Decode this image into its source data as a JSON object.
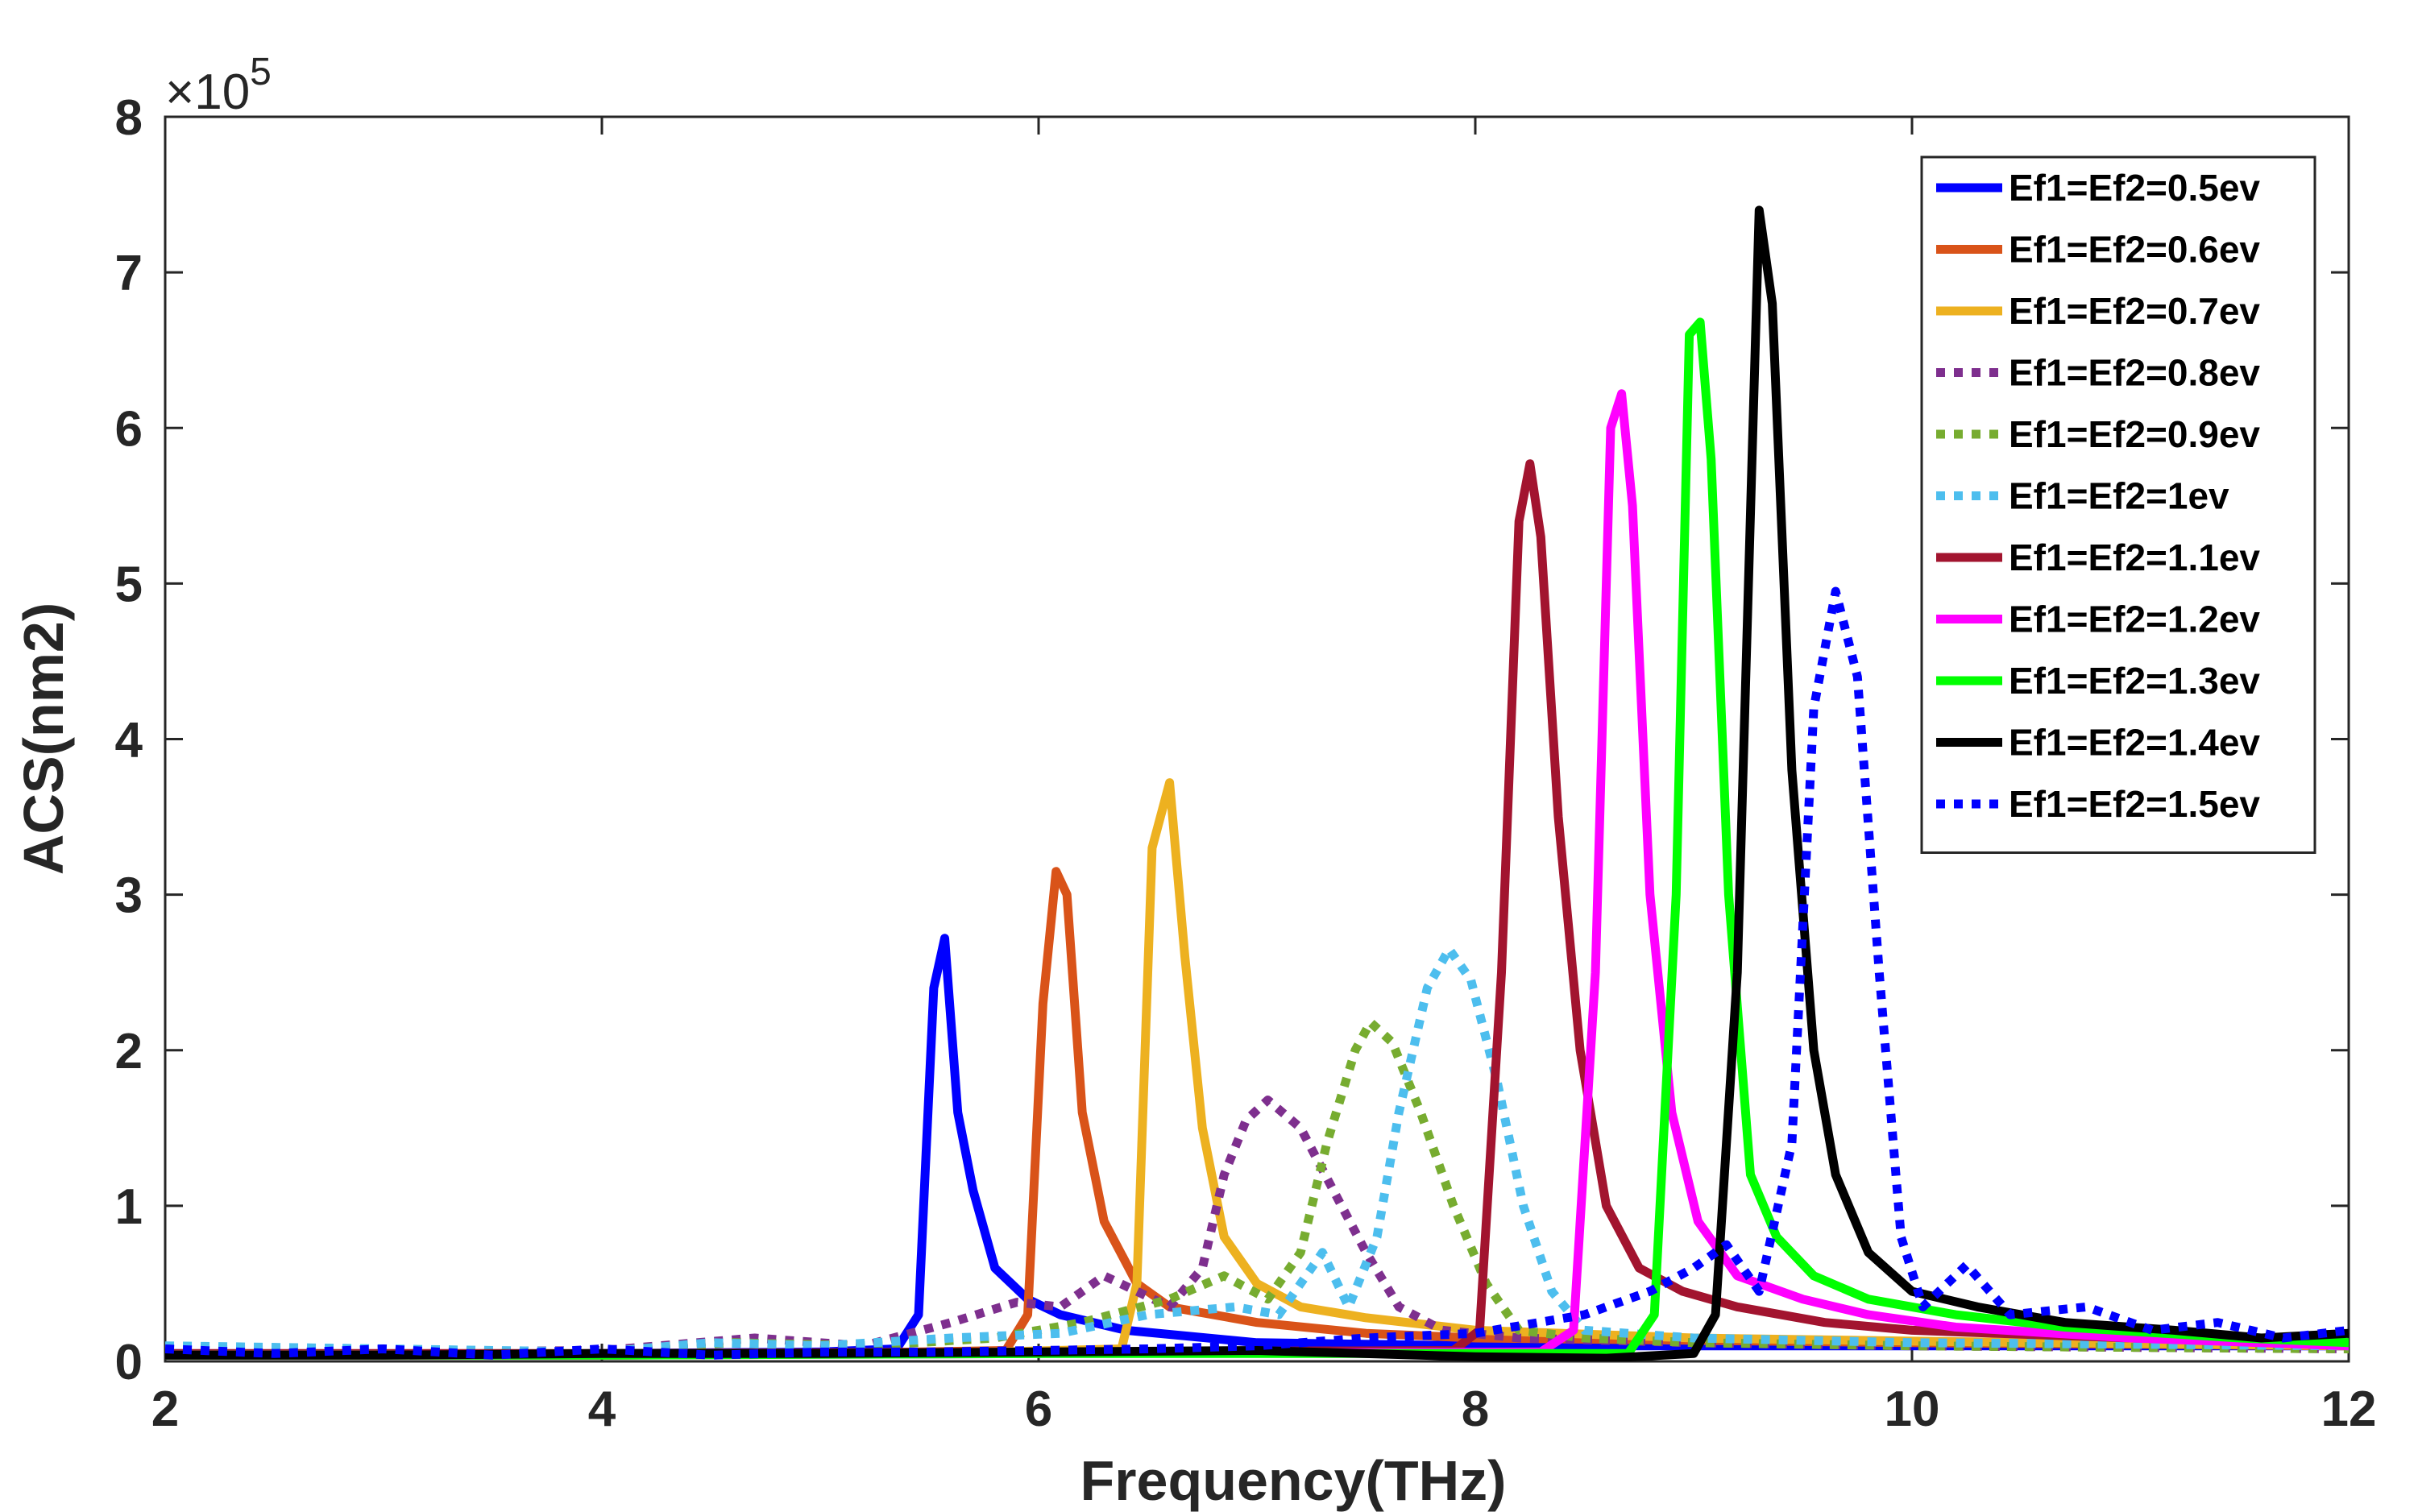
{
  "chart_data": {
    "type": "line",
    "title": "",
    "xlabel": "Frequency(THz)",
    "ylabel": "ACS(nm2)",
    "xlim": [
      2,
      12
    ],
    "ylim": [
      0,
      8
    ],
    "y_multiplier": "×10",
    "y_multiplier_exp": "5",
    "xticks": [
      2,
      4,
      6,
      8,
      10,
      12
    ],
    "yticks": [
      0,
      1,
      2,
      3,
      4,
      5,
      6,
      7,
      8
    ],
    "grid": false,
    "legend_position": "top-right",
    "series": [
      {
        "name": "Ef1=Ef2=0.5ev",
        "color": "#0000FF",
        "style": "solid",
        "points": [
          [
            2,
            0.05
          ],
          [
            3,
            0.04
          ],
          [
            4,
            0.05
          ],
          [
            5,
            0.06
          ],
          [
            5.35,
            0.08
          ],
          [
            5.45,
            0.3
          ],
          [
            5.52,
            2.4
          ],
          [
            5.57,
            2.72
          ],
          [
            5.63,
            1.6
          ],
          [
            5.7,
            1.1
          ],
          [
            5.8,
            0.6
          ],
          [
            5.95,
            0.4
          ],
          [
            6.1,
            0.3
          ],
          [
            6.4,
            0.2
          ],
          [
            7,
            0.12
          ],
          [
            8,
            0.1
          ],
          [
            10,
            0.1
          ],
          [
            12,
            0.1
          ]
        ]
      },
      {
        "name": "Ef1=Ef2=0.6ev",
        "color": "#D95319",
        "style": "solid",
        "points": [
          [
            2,
            0.04
          ],
          [
            4,
            0.04
          ],
          [
            5,
            0.05
          ],
          [
            5.85,
            0.07
          ],
          [
            5.95,
            0.3
          ],
          [
            6.02,
            2.3
          ],
          [
            6.08,
            3.15
          ],
          [
            6.13,
            3.0
          ],
          [
            6.2,
            1.6
          ],
          [
            6.3,
            0.9
          ],
          [
            6.45,
            0.5
          ],
          [
            6.6,
            0.35
          ],
          [
            7,
            0.25
          ],
          [
            7.5,
            0.18
          ],
          [
            8,
            0.15
          ],
          [
            10,
            0.12
          ],
          [
            12,
            0.1
          ]
        ]
      },
      {
        "name": "Ef1=Ef2=0.7ev",
        "color": "#EDB120",
        "style": "solid",
        "points": [
          [
            2,
            0.04
          ],
          [
            4,
            0.04
          ],
          [
            5.5,
            0.05
          ],
          [
            6.38,
            0.08
          ],
          [
            6.45,
            0.5
          ],
          [
            6.52,
            3.3
          ],
          [
            6.6,
            3.72
          ],
          [
            6.67,
            2.6
          ],
          [
            6.75,
            1.5
          ],
          [
            6.85,
            0.8
          ],
          [
            7,
            0.5
          ],
          [
            7.2,
            0.35
          ],
          [
            7.5,
            0.28
          ],
          [
            8,
            0.2
          ],
          [
            9,
            0.15
          ],
          [
            10,
            0.13
          ],
          [
            12,
            0.1
          ]
        ]
      },
      {
        "name": "Ef1=Ef2=0.8ev",
        "color": "#7E2F8E",
        "style": "dotted",
        "points": [
          [
            2,
            0.08
          ],
          [
            3,
            0.06
          ],
          [
            4,
            0.07
          ],
          [
            4.7,
            0.15
          ],
          [
            5.2,
            0.1
          ],
          [
            5.6,
            0.25
          ],
          [
            5.9,
            0.38
          ],
          [
            6.1,
            0.35
          ],
          [
            6.3,
            0.55
          ],
          [
            6.45,
            0.45
          ],
          [
            6.6,
            0.35
          ],
          [
            6.75,
            0.6
          ],
          [
            6.85,
            1.2
          ],
          [
            6.95,
            1.55
          ],
          [
            7.05,
            1.68
          ],
          [
            7.2,
            1.5
          ],
          [
            7.35,
            1.1
          ],
          [
            7.5,
            0.7
          ],
          [
            7.65,
            0.35
          ],
          [
            7.85,
            0.2
          ],
          [
            8.2,
            0.15
          ],
          [
            9,
            0.12
          ],
          [
            10,
            0.1
          ],
          [
            12,
            0.08
          ]
        ]
      },
      {
        "name": "Ef1=Ef2=0.9ev",
        "color": "#77AC30",
        "style": "dotted",
        "points": [
          [
            2,
            0.06
          ],
          [
            3,
            0.05
          ],
          [
            4,
            0.06
          ],
          [
            4.6,
            0.12
          ],
          [
            5.2,
            0.1
          ],
          [
            5.8,
            0.15
          ],
          [
            6.2,
            0.25
          ],
          [
            6.6,
            0.4
          ],
          [
            6.85,
            0.55
          ],
          [
            7.05,
            0.4
          ],
          [
            7.2,
            0.7
          ],
          [
            7.32,
            1.4
          ],
          [
            7.45,
            2.0
          ],
          [
            7.52,
            2.18
          ],
          [
            7.62,
            2.05
          ],
          [
            7.75,
            1.6
          ],
          [
            7.9,
            1.0
          ],
          [
            8.05,
            0.5
          ],
          [
            8.2,
            0.2
          ],
          [
            8.5,
            0.15
          ],
          [
            9,
            0.12
          ],
          [
            10,
            0.1
          ],
          [
            12,
            0.08
          ]
        ]
      },
      {
        "name": "Ef1=Ef2=1ev",
        "color": "#4DBEEE",
        "style": "dotted",
        "points": [
          [
            2,
            0.1
          ],
          [
            3,
            0.08
          ],
          [
            4,
            0.06
          ],
          [
            4.5,
            0.12
          ],
          [
            5,
            0.1
          ],
          [
            5.6,
            0.15
          ],
          [
            6.1,
            0.18
          ],
          [
            6.5,
            0.3
          ],
          [
            6.9,
            0.35
          ],
          [
            7.1,
            0.3
          ],
          [
            7.3,
            0.7
          ],
          [
            7.42,
            0.35
          ],
          [
            7.55,
            0.8
          ],
          [
            7.65,
            1.6
          ],
          [
            7.78,
            2.4
          ],
          [
            7.88,
            2.65
          ],
          [
            7.98,
            2.45
          ],
          [
            8.1,
            1.8
          ],
          [
            8.22,
            1.0
          ],
          [
            8.35,
            0.45
          ],
          [
            8.5,
            0.2
          ],
          [
            9,
            0.15
          ],
          [
            10,
            0.12
          ],
          [
            12,
            0.1
          ]
        ]
      },
      {
        "name": "Ef1=Ef2=1.1ev",
        "color": "#A2142F",
        "style": "solid",
        "points": [
          [
            2,
            0.05
          ],
          [
            4,
            0.05
          ],
          [
            6,
            0.06
          ],
          [
            7.9,
            0.07
          ],
          [
            8.02,
            0.2
          ],
          [
            8.12,
            2.5
          ],
          [
            8.2,
            5.4
          ],
          [
            8.25,
            5.77
          ],
          [
            8.3,
            5.3
          ],
          [
            8.38,
            3.5
          ],
          [
            8.48,
            2.0
          ],
          [
            8.6,
            1.0
          ],
          [
            8.75,
            0.6
          ],
          [
            8.95,
            0.45
          ],
          [
            9.2,
            0.35
          ],
          [
            9.6,
            0.25
          ],
          [
            10,
            0.2
          ],
          [
            11,
            0.15
          ],
          [
            12,
            0.12
          ]
        ]
      },
      {
        "name": "Ef1=Ef2=1.2ev",
        "color": "#FF00FF",
        "style": "solid",
        "points": [
          [
            2,
            0.04
          ],
          [
            4,
            0.04
          ],
          [
            6,
            0.05
          ],
          [
            8.3,
            0.06
          ],
          [
            8.45,
            0.2
          ],
          [
            8.55,
            2.5
          ],
          [
            8.62,
            6.0
          ],
          [
            8.67,
            6.22
          ],
          [
            8.72,
            5.5
          ],
          [
            8.8,
            3.0
          ],
          [
            8.9,
            1.6
          ],
          [
            9.02,
            0.9
          ],
          [
            9.2,
            0.55
          ],
          [
            9.5,
            0.4
          ],
          [
            9.8,
            0.3
          ],
          [
            10.2,
            0.22
          ],
          [
            11,
            0.15
          ],
          [
            12,
            0.1
          ]
        ]
      },
      {
        "name": "Ef1=Ef2=1.3ev",
        "color": "#00FF00",
        "style": "solid",
        "points": [
          [
            2,
            0.04
          ],
          [
            4,
            0.04
          ],
          [
            6,
            0.05
          ],
          [
            8.7,
            0.05
          ],
          [
            8.82,
            0.3
          ],
          [
            8.92,
            3.0
          ],
          [
            8.98,
            6.6
          ],
          [
            9.03,
            6.68
          ],
          [
            9.08,
            5.8
          ],
          [
            9.16,
            3.0
          ],
          [
            9.26,
            1.2
          ],
          [
            9.38,
            0.8
          ],
          [
            9.55,
            0.55
          ],
          [
            9.8,
            0.4
          ],
          [
            10.2,
            0.3
          ],
          [
            10.7,
            0.22
          ],
          [
            11.5,
            0.15
          ],
          [
            12,
            0.12
          ]
        ]
      },
      {
        "name": "Ef1=Ef2=1.4ev",
        "color": "#000000",
        "style": "solid",
        "points": [
          [
            2,
            0.04
          ],
          [
            3,
            0.04
          ],
          [
            4,
            0.05
          ],
          [
            5,
            0.05
          ],
          [
            6,
            0.06
          ],
          [
            7,
            0.07
          ],
          [
            8,
            0.03
          ],
          [
            8.6,
            0.02
          ],
          [
            9.0,
            0.05
          ],
          [
            9.1,
            0.3
          ],
          [
            9.2,
            2.5
          ],
          [
            9.3,
            7.4
          ],
          [
            9.36,
            6.8
          ],
          [
            9.45,
            3.8
          ],
          [
            9.55,
            2.0
          ],
          [
            9.65,
            1.2
          ],
          [
            9.8,
            0.7
          ],
          [
            10,
            0.45
          ],
          [
            10.3,
            0.35
          ],
          [
            10.7,
            0.25
          ],
          [
            11.2,
            0.2
          ],
          [
            11.6,
            0.15
          ],
          [
            12,
            0.18
          ]
        ]
      },
      {
        "name": "Ef1=Ef2=1.5ev",
        "color": "#0000FF",
        "style": "dotted",
        "points": [
          [
            2,
            0.08
          ],
          [
            2.5,
            0.05
          ],
          [
            3,
            0.08
          ],
          [
            3.5,
            0.04
          ],
          [
            4,
            0.08
          ],
          [
            4.5,
            0.04
          ],
          [
            5,
            0.06
          ],
          [
            5.5,
            0.06
          ],
          [
            6,
            0.07
          ],
          [
            6.5,
            0.08
          ],
          [
            7,
            0.1
          ],
          [
            7.5,
            0.15
          ],
          [
            8,
            0.18
          ],
          [
            8.5,
            0.3
          ],
          [
            8.8,
            0.45
          ],
          [
            9.0,
            0.6
          ],
          [
            9.15,
            0.75
          ],
          [
            9.3,
            0.45
          ],
          [
            9.45,
            1.4
          ],
          [
            9.55,
            4.2
          ],
          [
            9.65,
            4.95
          ],
          [
            9.75,
            4.4
          ],
          [
            9.85,
            2.5
          ],
          [
            9.95,
            0.8
          ],
          [
            10.05,
            0.35
          ],
          [
            10.25,
            0.62
          ],
          [
            10.45,
            0.3
          ],
          [
            10.8,
            0.35
          ],
          [
            11.1,
            0.2
          ],
          [
            11.4,
            0.25
          ],
          [
            11.7,
            0.15
          ],
          [
            12,
            0.2
          ]
        ]
      }
    ]
  }
}
